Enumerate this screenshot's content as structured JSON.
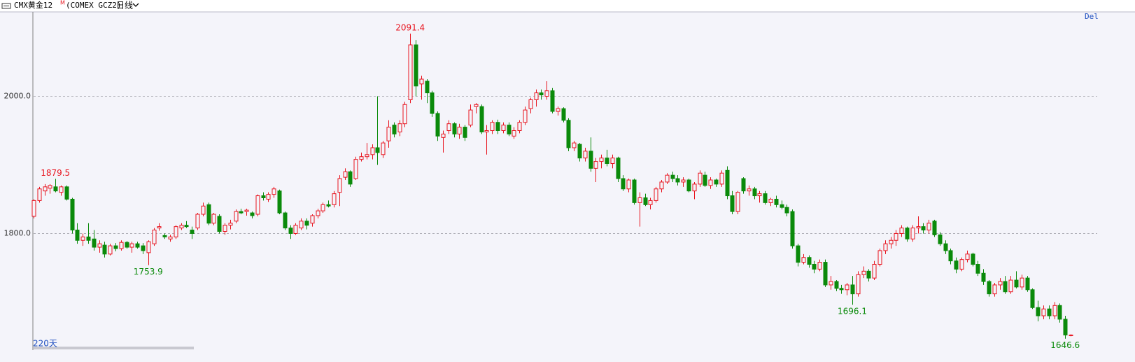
{
  "header": {
    "symbol": "CMX黄金12",
    "superscript": "M",
    "code": "(COMEX GCZ2)",
    "period": "日线",
    "action": "Del"
  },
  "chart_data": {
    "type": "candlestick",
    "period_label": "220天",
    "up_color": "#e8141e",
    "down_color": "#0a8a0a",
    "grid": true,
    "ylim": [
      1631,
      2122
    ],
    "yticks": [
      {
        "value": 1800,
        "label": "1800.0"
      },
      {
        "value": 2000,
        "label": "2000.0"
      }
    ],
    "annotations": [
      {
        "label": "1879.5",
        "value": 1879.5
      },
      {
        "label": "1753.9",
        "value": 1753.9
      },
      {
        "label": "2091.4",
        "value": 2091.4
      },
      {
        "label": "1696.1",
        "value": 1696.1
      },
      {
        "label": "1646.6",
        "value": 1646.6
      }
    ],
    "ohlc": [
      [
        1825,
        1850,
        1822,
        1848
      ],
      [
        1848,
        1868,
        1845,
        1865
      ],
      [
        1862,
        1872,
        1855,
        1868
      ],
      [
        1866,
        1872,
        1858,
        1870
      ],
      [
        1868,
        1879.5,
        1860,
        1862
      ],
      [
        1860,
        1870,
        1855,
        1868
      ],
      [
        1868,
        1870,
        1848,
        1850
      ],
      [
        1850,
        1852,
        1800,
        1805
      ],
      [
        1805,
        1815,
        1785,
        1790
      ],
      [
        1790,
        1800,
        1782,
        1795
      ],
      [
        1795,
        1815,
        1785,
        1790
      ],
      [
        1792,
        1805,
        1775,
        1780
      ],
      [
        1780,
        1790,
        1772,
        1785
      ],
      [
        1783,
        1788,
        1765,
        1770
      ],
      [
        1770,
        1785,
        1768,
        1782
      ],
      [
        1782,
        1786,
        1774,
        1778
      ],
      [
        1778,
        1790,
        1775,
        1787
      ],
      [
        1787,
        1789,
        1778,
        1780
      ],
      [
        1780,
        1788,
        1772,
        1785
      ],
      [
        1785,
        1788,
        1778,
        1780
      ],
      [
        1782,
        1786,
        1770,
        1775
      ],
      [
        1772,
        1790,
        1753.9,
        1788
      ],
      [
        1785,
        1808,
        1782,
        1805
      ],
      [
        1808,
        1815,
        1804,
        1810
      ],
      [
        1797,
        1800,
        1792,
        1795
      ],
      [
        1792,
        1798,
        1788,
        1795
      ],
      [
        1795,
        1812,
        1792,
        1810
      ],
      [
        1808,
        1815,
        1805,
        1812
      ],
      [
        1812,
        1818,
        1808,
        1810
      ],
      [
        1805,
        1810,
        1792,
        1800
      ],
      [
        1808,
        1830,
        1805,
        1828
      ],
      [
        1828,
        1845,
        1825,
        1840
      ],
      [
        1842,
        1845,
        1812,
        1815
      ],
      [
        1815,
        1830,
        1812,
        1828
      ],
      [
        1825,
        1828,
        1800,
        1803
      ],
      [
        1803,
        1815,
        1798,
        1812
      ],
      [
        1812,
        1820,
        1806,
        1815
      ],
      [
        1818,
        1835,
        1815,
        1832
      ],
      [
        1832,
        1836,
        1828,
        1830
      ],
      [
        1832,
        1836,
        1826,
        1834
      ],
      [
        1830,
        1832,
        1822,
        1826
      ],
      [
        1828,
        1857,
        1825,
        1855
      ],
      [
        1855,
        1860,
        1848,
        1852
      ],
      [
        1850,
        1860,
        1846,
        1857
      ],
      [
        1857,
        1868,
        1852,
        1865
      ],
      [
        1862,
        1864,
        1828,
        1830
      ],
      [
        1830,
        1832,
        1805,
        1808
      ],
      [
        1808,
        1812,
        1792,
        1800
      ],
      [
        1800,
        1815,
        1798,
        1812
      ],
      [
        1808,
        1822,
        1805,
        1818
      ],
      [
        1818,
        1822,
        1806,
        1812
      ],
      [
        1815,
        1828,
        1810,
        1826
      ],
      [
        1826,
        1836,
        1822,
        1833
      ],
      [
        1833,
        1845,
        1830,
        1842
      ],
      [
        1842,
        1848,
        1838,
        1840
      ],
      [
        1842,
        1862,
        1838,
        1858
      ],
      [
        1860,
        1885,
        1840,
        1880
      ],
      [
        1882,
        1895,
        1878,
        1890
      ],
      [
        1890,
        1892,
        1868,
        1872
      ],
      [
        1880,
        1912,
        1878,
        1908
      ],
      [
        1908,
        1918,
        1905,
        1912
      ],
      [
        1912,
        1932,
        1908,
        1915
      ],
      [
        1915,
        1930,
        1908,
        1925
      ],
      [
        1925,
        2000,
        1900,
        1918
      ],
      [
        1915,
        1935,
        1910,
        1932
      ],
      [
        1935,
        1965,
        1925,
        1955
      ],
      [
        1958,
        1962,
        1940,
        1945
      ],
      [
        1948,
        1965,
        1942,
        1960
      ],
      [
        1960,
        1992,
        1955,
        1988
      ],
      [
        1995,
        2091.4,
        1990,
        2075
      ],
      [
        2075,
        2082,
        2000,
        2015
      ],
      [
        2018,
        2030,
        1995,
        2025
      ],
      [
        2022,
        2025,
        1990,
        2005
      ],
      [
        2005,
        2008,
        1970,
        1975
      ],
      [
        1975,
        1978,
        1935,
        1942
      ],
      [
        1940,
        1950,
        1918,
        1945
      ],
      [
        1950,
        1965,
        1945,
        1960
      ],
      [
        1960,
        1962,
        1940,
        1945
      ],
      [
        1945,
        1960,
        1938,
        1955
      ],
      [
        1955,
        1958,
        1935,
        1940
      ],
      [
        1958,
        1988,
        1955,
        1980
      ],
      [
        1985,
        1990,
        1975,
        1988
      ],
      [
        1985,
        1988,
        1945,
        1948
      ],
      [
        1948,
        1958,
        1915,
        1950
      ],
      [
        1950,
        1965,
        1945,
        1962
      ],
      [
        1962,
        1966,
        1945,
        1950
      ],
      [
        1950,
        1962,
        1946,
        1958
      ],
      [
        1958,
        1962,
        1942,
        1945
      ],
      [
        1942,
        1955,
        1938,
        1950
      ],
      [
        1950,
        1965,
        1946,
        1962
      ],
      [
        1962,
        1985,
        1958,
        1980
      ],
      [
        1982,
        1998,
        1975,
        1995
      ],
      [
        1995,
        2010,
        1985,
        2005
      ],
      [
        2005,
        2010,
        1995,
        2002
      ],
      [
        2000,
        2022,
        1995,
        2008
      ],
      [
        2008,
        2012,
        1975,
        1978
      ],
      [
        1978,
        1985,
        1972,
        1982
      ],
      [
        1982,
        1984,
        1962,
        1965
      ],
      [
        1965,
        1968,
        1920,
        1925
      ],
      [
        1925,
        1935,
        1920,
        1932
      ],
      [
        1930,
        1932,
        1905,
        1910
      ],
      [
        1910,
        1925,
        1905,
        1920
      ],
      [
        1920,
        1940,
        1890,
        1895
      ],
      [
        1895,
        1910,
        1875,
        1905
      ],
      [
        1905,
        1915,
        1895,
        1910
      ],
      [
        1910,
        1922,
        1898,
        1902
      ],
      [
        1902,
        1915,
        1895,
        1910
      ],
      [
        1910,
        1912,
        1875,
        1880
      ],
      [
        1880,
        1885,
        1862,
        1865
      ],
      [
        1865,
        1880,
        1860,
        1878
      ],
      [
        1878,
        1880,
        1842,
        1845
      ],
      [
        1845,
        1860,
        1810,
        1852
      ],
      [
        1852,
        1858,
        1840,
        1842
      ],
      [
        1842,
        1852,
        1835,
        1848
      ],
      [
        1848,
        1868,
        1845,
        1865
      ],
      [
        1865,
        1878,
        1860,
        1875
      ],
      [
        1875,
        1888,
        1872,
        1885
      ],
      [
        1885,
        1890,
        1875,
        1880
      ],
      [
        1880,
        1885,
        1870,
        1875
      ],
      [
        1875,
        1882,
        1868,
        1878
      ],
      [
        1878,
        1880,
        1860,
        1862
      ],
      [
        1862,
        1875,
        1850,
        1872
      ],
      [
        1872,
        1892,
        1868,
        1888
      ],
      [
        1885,
        1890,
        1868,
        1870
      ],
      [
        1870,
        1882,
        1865,
        1878
      ],
      [
        1878,
        1880,
        1868,
        1872
      ],
      [
        1872,
        1892,
        1868,
        1888
      ],
      [
        1892,
        1898,
        1850,
        1855
      ],
      [
        1855,
        1862,
        1828,
        1832
      ],
      [
        1832,
        1862,
        1828,
        1860
      ],
      [
        1880,
        1882,
        1858,
        1862
      ],
      [
        1862,
        1870,
        1855,
        1865
      ],
      [
        1865,
        1868,
        1850,
        1855
      ],
      [
        1855,
        1862,
        1845,
        1858
      ],
      [
        1858,
        1862,
        1842,
        1845
      ],
      [
        1845,
        1852,
        1840,
        1850
      ],
      [
        1850,
        1855,
        1838,
        1842
      ],
      [
        1842,
        1848,
        1835,
        1838
      ],
      [
        1838,
        1842,
        1825,
        1830
      ],
      [
        1832,
        1835,
        1778,
        1782
      ],
      [
        1782,
        1785,
        1752,
        1758
      ],
      [
        1758,
        1770,
        1755,
        1765
      ],
      [
        1765,
        1768,
        1750,
        1755
      ],
      [
        1755,
        1760,
        1742,
        1748
      ],
      [
        1748,
        1762,
        1745,
        1758
      ],
      [
        1758,
        1762,
        1722,
        1725
      ],
      [
        1725,
        1738,
        1718,
        1730
      ],
      [
        1730,
        1732,
        1716,
        1720
      ],
      [
        1720,
        1725,
        1712,
        1718
      ],
      [
        1718,
        1728,
        1710,
        1725
      ],
      [
        1725,
        1738,
        1696.1,
        1712
      ],
      [
        1712,
        1745,
        1708,
        1740
      ],
      [
        1740,
        1752,
        1735,
        1745
      ],
      [
        1745,
        1748,
        1730,
        1735
      ],
      [
        1735,
        1760,
        1732,
        1755
      ],
      [
        1755,
        1778,
        1752,
        1775
      ],
      [
        1775,
        1790,
        1770,
        1785
      ],
      [
        1785,
        1795,
        1778,
        1790
      ],
      [
        1790,
        1805,
        1782,
        1800
      ],
      [
        1800,
        1812,
        1795,
        1808
      ],
      [
        1808,
        1810,
        1788,
        1792
      ],
      [
        1792,
        1812,
        1788,
        1808
      ],
      [
        1808,
        1825,
        1800,
        1810
      ],
      [
        1810,
        1815,
        1800,
        1805
      ],
      [
        1805,
        1820,
        1800,
        1815
      ],
      [
        1818,
        1820,
        1795,
        1798
      ],
      [
        1798,
        1802,
        1782,
        1785
      ],
      [
        1785,
        1790,
        1770,
        1775
      ],
      [
        1775,
        1778,
        1755,
        1760
      ],
      [
        1760,
        1765,
        1742,
        1748
      ],
      [
        1748,
        1765,
        1745,
        1762
      ],
      [
        1762,
        1775,
        1758,
        1770
      ],
      [
        1770,
        1772,
        1752,
        1755
      ],
      [
        1755,
        1760,
        1738,
        1742
      ],
      [
        1742,
        1748,
        1725,
        1730
      ],
      [
        1730,
        1732,
        1708,
        1712
      ],
      [
        1712,
        1728,
        1708,
        1725
      ],
      [
        1725,
        1735,
        1718,
        1730
      ],
      [
        1730,
        1738,
        1712,
        1715
      ],
      [
        1715,
        1738,
        1712,
        1732
      ],
      [
        1732,
        1745,
        1720,
        1722
      ],
      [
        1722,
        1740,
        1718,
        1735
      ],
      [
        1735,
        1738,
        1715,
        1718
      ],
      [
        1718,
        1720,
        1690,
        1692
      ],
      [
        1692,
        1702,
        1672,
        1680
      ],
      [
        1680,
        1695,
        1675,
        1690
      ],
      [
        1690,
        1695,
        1675,
        1680
      ],
      [
        1680,
        1700,
        1675,
        1695
      ],
      [
        1695,
        1698,
        1670,
        1675
      ],
      [
        1675,
        1680,
        1646.6,
        1652
      ],
      [
        1652,
        1653,
        1650,
        1652
      ]
    ]
  }
}
